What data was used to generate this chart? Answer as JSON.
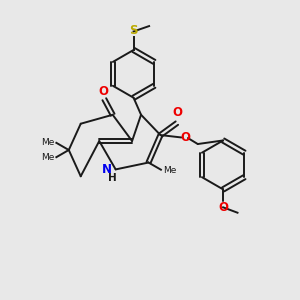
{
  "bg_color": "#e8e8e8",
  "bond_color": "#1a1a1a",
  "bond_width": 1.4,
  "N_color": "#0000ee",
  "O_color": "#ee0000",
  "S_color": "#bbaa00",
  "font_size": 7.0,
  "figsize": [
    3.0,
    3.0
  ],
  "dpi": 100,
  "xlim": [
    0,
    10
  ],
  "ylim": [
    0,
    10
  ]
}
